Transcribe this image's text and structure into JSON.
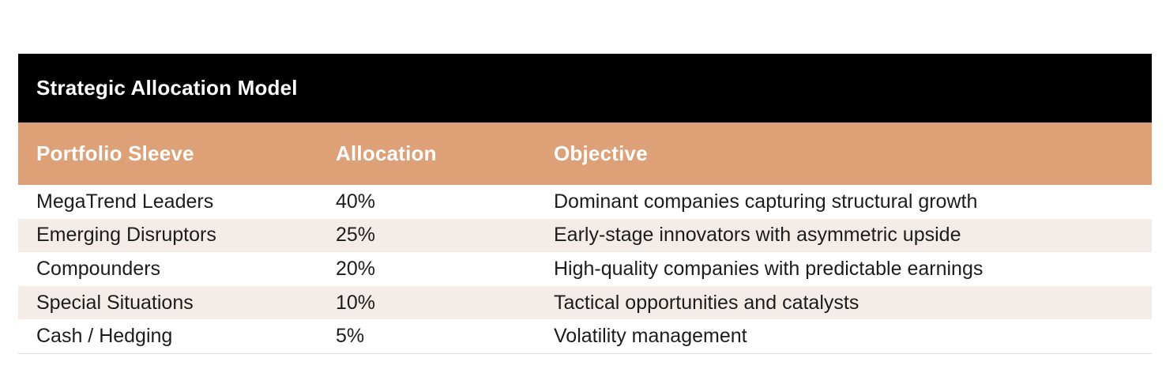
{
  "chart_data": {
    "type": "table",
    "title": "Strategic Allocation Model",
    "columns": [
      "Portfolio Sleeve",
      "Allocation",
      "Objective"
    ],
    "rows": [
      [
        "MegaTrend Leaders",
        "40%",
        "Dominant companies capturing structural growth"
      ],
      [
        "Emerging Disruptors",
        "25%",
        "Early-stage innovators with asymmetric upside"
      ],
      [
        "Compounders",
        "20%",
        "High-quality companies with predictable earnings"
      ],
      [
        "Special Situations",
        "10%",
        "Tactical opportunities and catalysts"
      ],
      [
        "Cash / Hedging",
        "5%",
        "Volatility management"
      ]
    ],
    "allocations_numeric_pct": [
      40,
      25,
      20,
      10,
      5
    ]
  },
  "table": {
    "title": "Strategic Allocation Model",
    "headers": {
      "sleeve": "Portfolio Sleeve",
      "allocation": "Allocation",
      "objective": "Objective"
    },
    "rows": [
      {
        "sleeve": "MegaTrend Leaders",
        "allocation": "40%",
        "objective": "Dominant companies capturing structural growth"
      },
      {
        "sleeve": "Emerging Disruptors",
        "allocation": "25%",
        "objective": "Early-stage innovators with asymmetric upside"
      },
      {
        "sleeve": "Compounders",
        "allocation": "20%",
        "objective": "High-quality companies with predictable earnings"
      },
      {
        "sleeve": "Special Situations",
        "allocation": "10%",
        "objective": "Tactical opportunities and catalysts"
      },
      {
        "sleeve": "Cash / Hedging",
        "allocation": "5%",
        "objective": "Volatility management"
      }
    ]
  },
  "colors": {
    "title_bar_bg": "#000000",
    "title_text": "#ffffff",
    "header_bg": "#dda077",
    "header_text": "#ffffff",
    "row_bg": "#ffffff",
    "row_alt_bg": "#f4ece8",
    "body_text": "#1c1c1c",
    "bottom_border": "#dfdcda"
  }
}
